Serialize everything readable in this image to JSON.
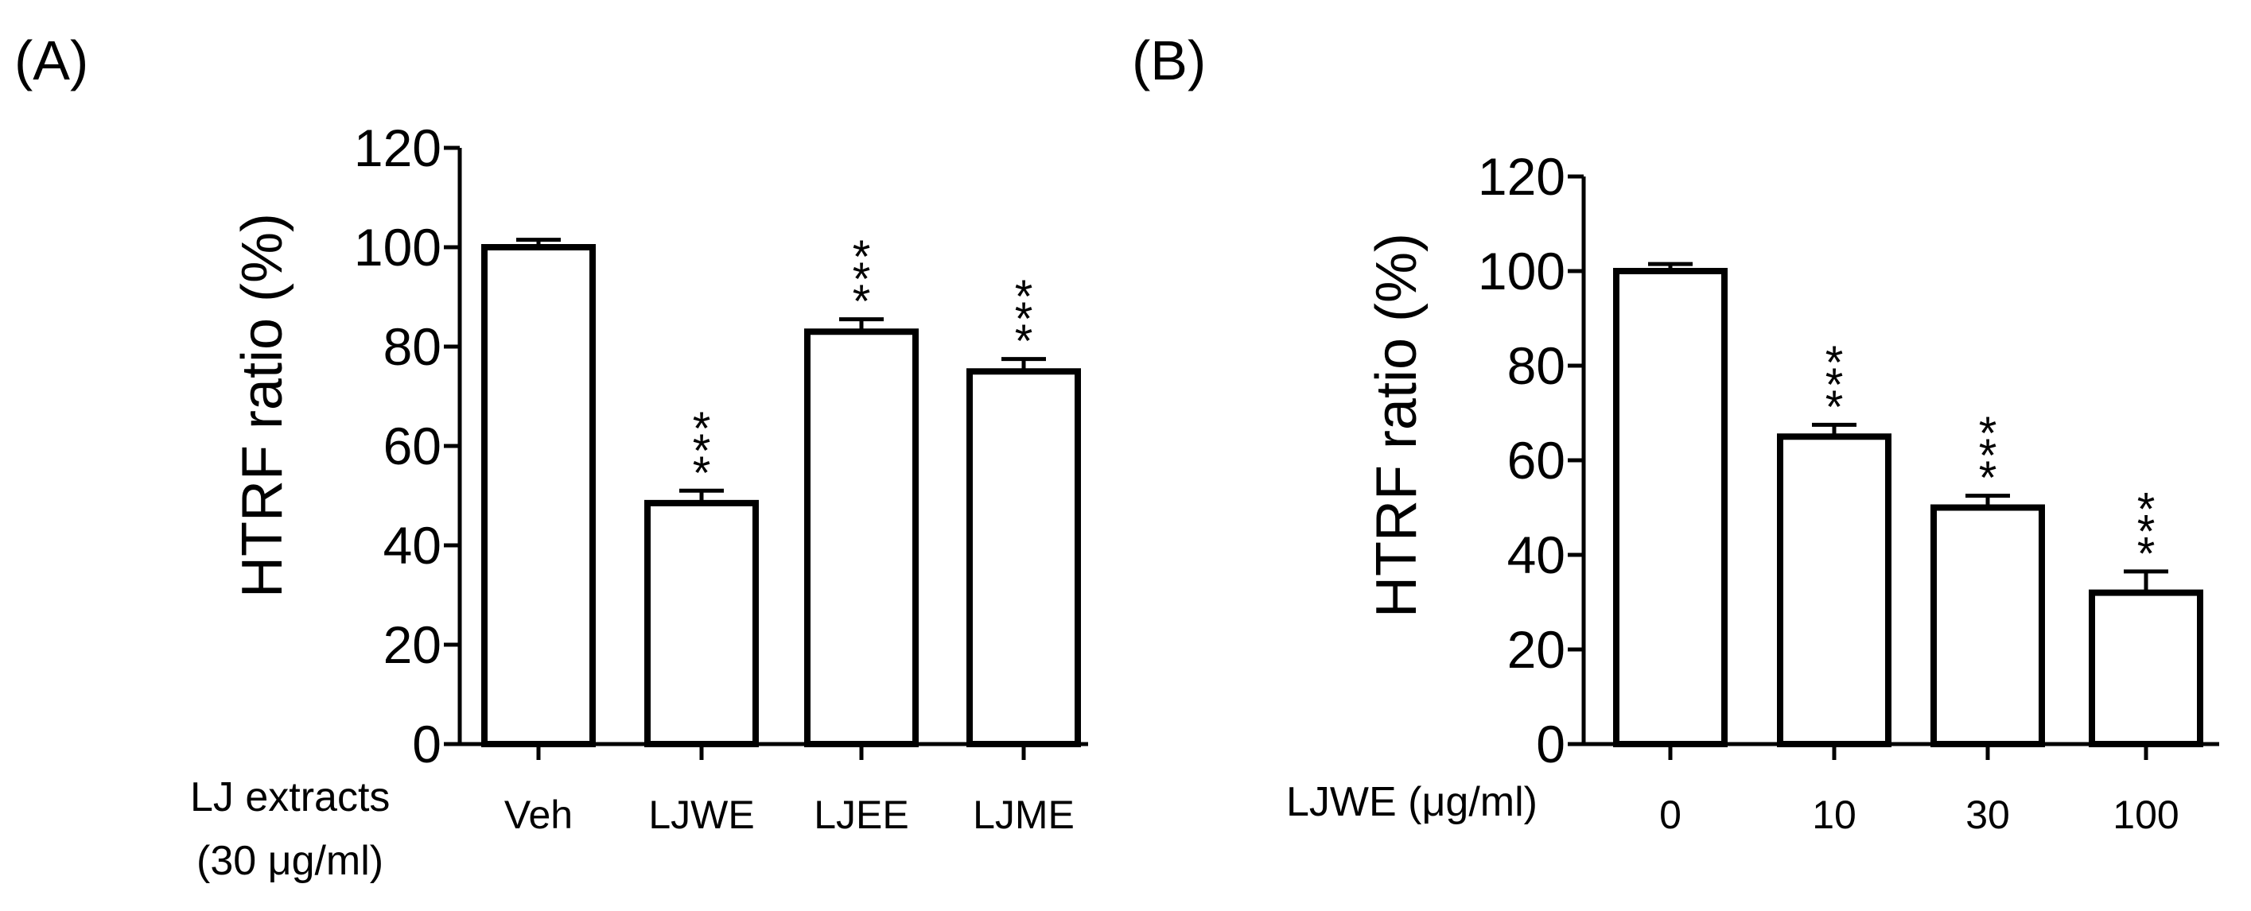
{
  "chart_data": [
    {
      "panel_label": "(A)",
      "type": "bar",
      "ylabel": "HTRF ratio (%)",
      "xlabel_lines": [
        "LJ extracts",
        "(30 μg/ml)"
      ],
      "ylim": [
        0,
        120
      ],
      "yticks": [
        0,
        20,
        40,
        60,
        80,
        100,
        120
      ],
      "categories": [
        "Veh",
        "LJWE",
        "LJEE",
        "LJME"
      ],
      "values": [
        100,
        48.5,
        83,
        75
      ],
      "errors": [
        1.5,
        2.5,
        2.5,
        2.5
      ],
      "significance": [
        "",
        "***",
        "***",
        "***"
      ],
      "colors": {
        "bar_fill": "#ffffff",
        "stroke": "#000000"
      }
    },
    {
      "panel_label": "(B)",
      "type": "bar",
      "ylabel": "HTRF ratio (%)",
      "xlabel_lines": [
        "LJWE (μg/ml)"
      ],
      "ylim": [
        0,
        120
      ],
      "yticks": [
        0,
        20,
        40,
        60,
        80,
        100,
        120
      ],
      "categories": [
        "0",
        "10",
        "30",
        "100"
      ],
      "values": [
        100,
        65,
        50,
        32
      ],
      "errors": [
        1.5,
        2.5,
        2.5,
        4.5
      ],
      "significance": [
        "",
        "***",
        "***",
        "***"
      ],
      "colors": {
        "bar_fill": "#ffffff",
        "stroke": "#000000"
      }
    }
  ]
}
